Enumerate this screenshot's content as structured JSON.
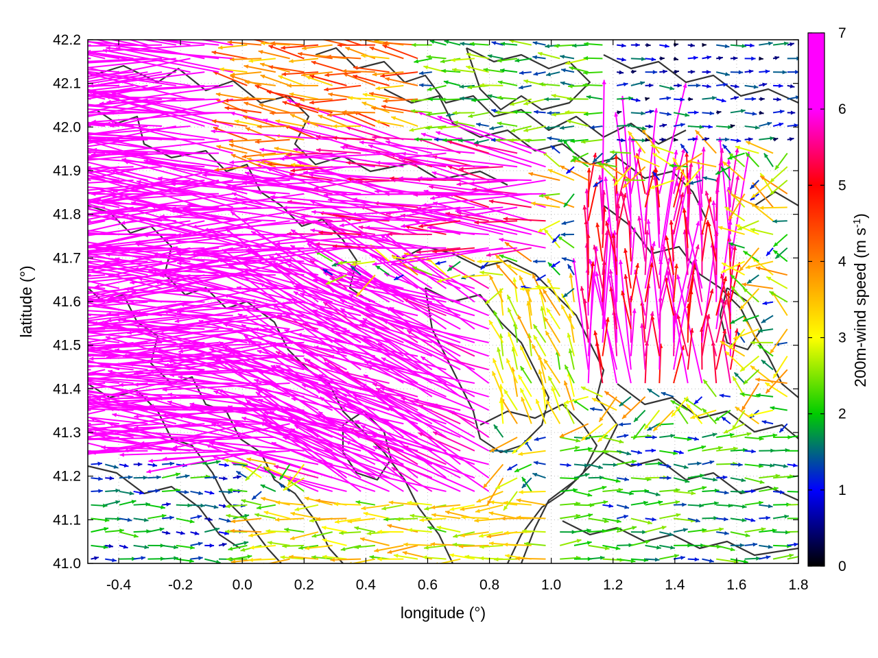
{
  "chart_data": {
    "type": "vector-field",
    "xlabel": "longitude (°)",
    "ylabel": "latitude (°)",
    "colorbar_label_base": "200m-wind speed (m s",
    "colorbar_label_sup": "-1",
    "colorbar_label_close": ")",
    "xlim": [
      -0.5,
      1.8
    ],
    "ylim": [
      41.0,
      42.2
    ],
    "xticks": [
      -0.4,
      -0.2,
      0.0,
      0.2,
      0.4,
      0.6,
      0.8,
      1.0,
      1.2,
      1.4,
      1.6,
      1.8
    ],
    "xtick_labels": [
      "-0.4",
      "-0.2",
      "0.0",
      "0.2",
      "0.4",
      "0.6",
      "0.8",
      "1.0",
      "1.2",
      "1.4",
      "1.6",
      "1.8"
    ],
    "yticks": [
      41.0,
      41.1,
      41.2,
      41.3,
      41.4,
      41.5,
      41.6,
      41.7,
      41.8,
      41.9,
      42.0,
      42.1,
      42.2
    ],
    "ytick_labels": [
      "41.0",
      "41.1",
      "41.2",
      "41.3",
      "41.4",
      "41.5",
      "41.6",
      "41.7",
      "41.8",
      "41.9",
      "42.0",
      "42.1",
      "42.2"
    ],
    "colorbar_range": [
      0,
      7
    ],
    "colorbar_ticks": [
      "0",
      "1",
      "2",
      "3",
      "4",
      "5",
      "6",
      "7"
    ],
    "colormap": [
      "#000000",
      "#0000ff",
      "#00cc00",
      "#ffff00",
      "#ff8000",
      "#ff0000",
      "#ff00ff"
    ],
    "grid": "dotted",
    "contour_color": "#333333",
    "wind_regions": [
      {
        "region": "west",
        "lon": [
          -0.5,
          0.25
        ],
        "lat": [
          41.25,
          42.2
        ],
        "speed_ms": 7.0,
        "direction_deg_from_east": 178
      },
      {
        "region": "northwest",
        "lon": [
          0.0,
          0.6
        ],
        "lat": [
          41.9,
          42.2
        ],
        "speed_ms": 4.0,
        "direction_deg_from_east": 172
      },
      {
        "region": "central-north",
        "lon": [
          0.25,
          1.0
        ],
        "lat": [
          41.7,
          42.0
        ],
        "speed_ms": 6.0,
        "direction_deg_from_east": 175
      },
      {
        "region": "central",
        "lon": [
          0.2,
          0.8
        ],
        "lat": [
          41.15,
          41.65
        ],
        "speed_ms": 6.5,
        "direction_deg_from_east": 155
      },
      {
        "region": "north-east",
        "lon": [
          0.6,
          1.4
        ],
        "lat": [
          41.95,
          42.2
        ],
        "speed_ms": 2.0,
        "direction_deg_from_east": 180
      },
      {
        "region": "far-north-east",
        "lon": [
          1.2,
          1.8
        ],
        "lat": [
          41.95,
          42.2
        ],
        "speed_ms": 1.0,
        "direction_deg_from_east": 0
      },
      {
        "region": "east-convergence",
        "lon": [
          1.1,
          1.6
        ],
        "lat": [
          41.4,
          41.85
        ],
        "speed_ms": 5.5,
        "direction_deg_from_east": 90
      },
      {
        "region": "south-east",
        "lon": [
          1.0,
          1.8
        ],
        "lat": [
          41.0,
          41.3
        ],
        "speed_ms": 1.8,
        "direction_deg_from_east": 0
      },
      {
        "region": "south-west",
        "lon": [
          -0.5,
          0.0
        ],
        "lat": [
          41.0,
          41.25
        ],
        "speed_ms": 1.5,
        "direction_deg_from_east": 0
      },
      {
        "region": "south",
        "lon": [
          0.0,
          1.0
        ],
        "lat": [
          41.0,
          41.15
        ],
        "speed_ms": 3.0,
        "direction_deg_from_east": 180
      },
      {
        "region": "east-south",
        "lon": [
          0.8,
          1.1
        ],
        "lat": [
          41.3,
          41.6
        ],
        "speed_ms": 3.0,
        "direction_deg_from_east": 110
      }
    ]
  }
}
